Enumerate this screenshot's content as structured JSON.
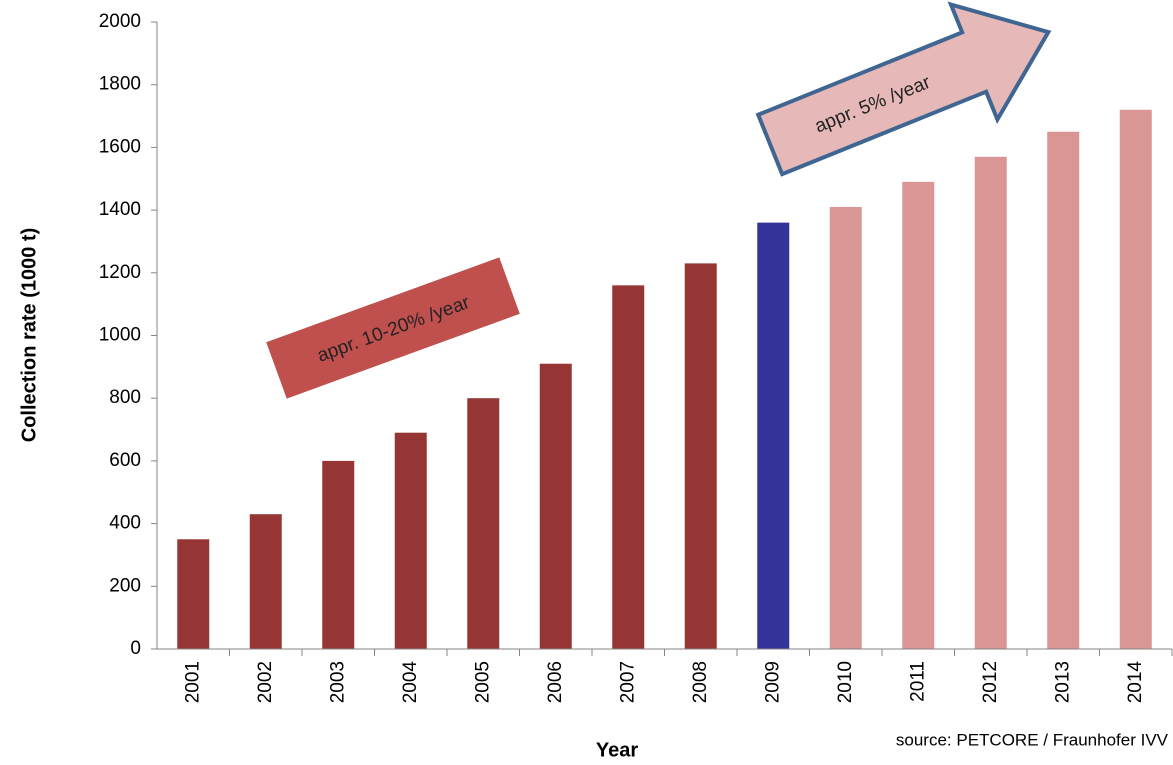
{
  "chart_data": {
    "type": "bar",
    "x_label": "Year",
    "y_label": "Collection rate (1000 t)",
    "source": "source: PETCORE / Fraunhofer IVV",
    "annotations": [
      "appr. 10-20% /year",
      "appr. 5% /year"
    ],
    "categories": [
      "2001",
      "2002",
      "2003",
      "2004",
      "2005",
      "2006",
      "2007",
      "2008",
      "2009",
      "2010",
      "2011",
      "2012",
      "2013",
      "2014"
    ],
    "values": [
      350,
      430,
      600,
      690,
      800,
      910,
      1160,
      1230,
      1360,
      1410,
      1490,
      1570,
      1650,
      1720
    ],
    "colors": [
      "#963634",
      "#963634",
      "#963634",
      "#963634",
      "#963634",
      "#963634",
      "#963634",
      "#963634",
      "#333399",
      "#da9694",
      "#da9694",
      "#da9694",
      "#da9694",
      "#da9694"
    ],
    "ylim": [
      0,
      2000
    ],
    "yticks": [
      0,
      200,
      400,
      600,
      800,
      1000,
      1200,
      1400,
      1600,
      1800,
      2000
    ],
    "grid": false
  }
}
